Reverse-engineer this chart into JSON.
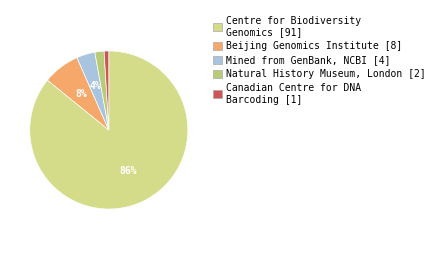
{
  "labels": [
    "Centre for Biodiversity\nGenomics [91]",
    "Beijing Genomics Institute [8]",
    "Mined from GenBank, NCBI [4]",
    "Natural History Museum, London [2]",
    "Canadian Centre for DNA\nBarcoding [1]"
  ],
  "values": [
    91,
    8,
    4,
    2,
    1
  ],
  "colors": [
    "#d4dc8a",
    "#f5a86a",
    "#a8c4de",
    "#b8cc78",
    "#cc5555"
  ],
  "background_color": "#ffffff",
  "text_color": "#ffffff",
  "fontsize_pct": 7,
  "fontsize_legend": 7
}
